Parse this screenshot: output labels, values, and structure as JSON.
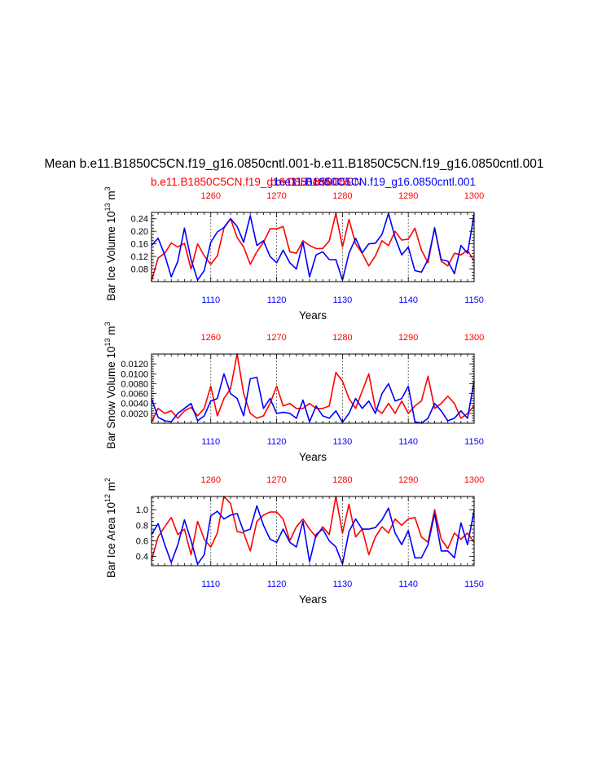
{
  "title": "Mean b.e11.B1850C5CN.f19_g16.0850cntl.001-b.e11.B1850C5CN.f19_g16.0850cntl.001",
  "legend": {
    "red": "b.e11.B1850C5CN.f19_g16.0850cntl.001",
    "overlap": "b.e11.B1850C5CN",
    "blue": "b.e11.B1850C5CN.f19_g16.0850cntl.001"
  },
  "colors": {
    "case1": "#ff0000",
    "case2": "#0000ff"
  },
  "chart_data": [
    {
      "type": "line",
      "ylabel": "Bar Ice Volume 10",
      "ylabel_exp": "13",
      "ylabel_unit": "m",
      "ylabel_unit_exp": "3",
      "xlabel": "Years",
      "ylim": [
        0.04,
        0.26
      ],
      "yticks": [
        0.08,
        0.12,
        0.16,
        0.2,
        0.24
      ],
      "yticklabels": [
        "0.08",
        "0.12",
        "0.16",
        "0.20",
        "0.24"
      ],
      "ystep": 0.01,
      "bottom_axis": {
        "range": [
          1101,
          1150
        ],
        "ticks": [
          1110,
          1120,
          1130,
          1140,
          1150
        ],
        "labels": [
          "1110",
          "1120",
          "1130",
          "1140",
          "1150"
        ]
      },
      "top_axis": {
        "range": [
          1251,
          1300
        ],
        "ticks": [
          1260,
          1270,
          1280,
          1290,
          1300
        ],
        "labels": [
          "1260",
          "1270",
          "1280",
          "1290",
          "1300"
        ]
      },
      "series": [
        {
          "name": "b.e11.B1850C5CN.f19_g16.0850cntl.001 (red, top axis)",
          "color": "#ff0000",
          "values": [
            0.042,
            0.115,
            0.13,
            0.163,
            0.15,
            0.162,
            0.08,
            0.16,
            0.122,
            0.095,
            0.122,
            0.21,
            0.24,
            0.18,
            0.15,
            0.095,
            0.135,
            0.165,
            0.208,
            0.208,
            0.215,
            0.135,
            0.13,
            0.17,
            0.155,
            0.145,
            0.145,
            0.17,
            0.257,
            0.15,
            0.238,
            0.16,
            0.13,
            0.09,
            0.122,
            0.17,
            0.155,
            0.2,
            0.172,
            0.175,
            0.21,
            0.14,
            0.1,
            0.212,
            0.105,
            0.09,
            0.13,
            0.125,
            0.14,
            0.105
          ]
        },
        {
          "name": "b.e11.B1850C5CN.f19_g16.0850cntl.001 (blue, bottom axis)",
          "color": "#0000ff",
          "values": [
            0.155,
            0.178,
            0.125,
            0.055,
            0.105,
            0.21,
            0.11,
            0.045,
            0.075,
            0.165,
            0.198,
            0.212,
            0.24,
            0.215,
            0.165,
            0.25,
            0.155,
            0.17,
            0.12,
            0.1,
            0.14,
            0.1,
            0.08,
            0.165,
            0.055,
            0.125,
            0.135,
            0.11,
            0.11,
            0.045,
            0.13,
            0.178,
            0.132,
            0.16,
            0.162,
            0.19,
            0.257,
            0.18,
            0.125,
            0.15,
            0.075,
            0.07,
            0.11,
            0.21,
            0.11,
            0.105,
            0.065,
            0.155,
            0.13,
            0.255
          ]
        }
      ]
    },
    {
      "type": "line",
      "ylabel": "Bar Snow Volume 10",
      "ylabel_exp": "13",
      "ylabel_unit": "m",
      "ylabel_unit_exp": "3",
      "xlabel": "Years",
      "ylim": [
        0.0,
        0.014
      ],
      "yticks": [
        0.002,
        0.004,
        0.006,
        0.008,
        0.01,
        0.012
      ],
      "yticklabels": [
        "0.0020",
        "0.0040",
        "0.0060",
        "0.0080",
        "0.0100",
        "0.0120"
      ],
      "ystep": 0.0005,
      "bottom_axis": {
        "range": [
          1101,
          1150
        ],
        "ticks": [
          1110,
          1120,
          1130,
          1140,
          1150
        ],
        "labels": [
          "1110",
          "1120",
          "1130",
          "1140",
          "1150"
        ]
      },
      "top_axis": {
        "range": [
          1251,
          1300
        ],
        "ticks": [
          1260,
          1270,
          1280,
          1290,
          1300
        ],
        "labels": [
          "1260",
          "1270",
          "1280",
          "1290",
          "1300"
        ]
      },
      "series": [
        {
          "name": "b.e11.B1850C5CN.f19_g16.0850cntl.001 (red, top axis)",
          "color": "#ff0000",
          "values": [
            0.0002,
            0.003,
            0.002,
            0.0025,
            0.001,
            0.0025,
            0.0032,
            0.0015,
            0.003,
            0.0075,
            0.0015,
            0.005,
            0.007,
            0.014,
            0.006,
            0.002,
            0.001,
            0.0015,
            0.004,
            0.0075,
            0.0035,
            0.004,
            0.003,
            0.003,
            0.004,
            0.003,
            0.003,
            0.0035,
            0.0103,
            0.0085,
            0.005,
            0.003,
            0.0065,
            0.01,
            0.003,
            0.002,
            0.004,
            0.002,
            0.0045,
            0.002,
            0.0035,
            0.0045,
            0.0095,
            0.003,
            0.004,
            0.0055,
            0.004,
            0.001,
            0.002,
            0.0035
          ]
        },
        {
          "name": "b.e11.B1850C5CN.f19_g16.0850cntl.001 (blue, bottom axis)",
          "color": "#0000ff",
          "values": [
            0.005,
            0.0012,
            0.0005,
            0.0003,
            0.002,
            0.003,
            0.004,
            0.0005,
            0.0015,
            0.0045,
            0.005,
            0.01,
            0.006,
            0.005,
            0.0015,
            0.009,
            0.0093,
            0.003,
            0.005,
            0.002,
            0.0022,
            0.002,
            0.001,
            0.0047,
            0.0003,
            0.0035,
            0.0015,
            0.001,
            0.0025,
            0.0002,
            0.002,
            0.005,
            0.003,
            0.0045,
            0.002,
            0.006,
            0.008,
            0.0045,
            0.005,
            0.0075,
            0.0003,
            0.0,
            0.001,
            0.004,
            0.0025,
            0.0005,
            0.001,
            0.0025,
            0.001,
            0.0085
          ]
        }
      ]
    },
    {
      "type": "line",
      "ylabel": "Bar Ice Area 10",
      "ylabel_exp": "12",
      "ylabel_unit": "m",
      "ylabel_unit_exp": "2",
      "xlabel": "Years",
      "ylim": [
        0.28,
        1.17
      ],
      "yticks": [
        0.4,
        0.6,
        0.8,
        1.0
      ],
      "yticklabels": [
        "0.4",
        "0.6",
        "0.8",
        "1.0"
      ],
      "ystep": 0.05,
      "bottom_axis": {
        "range": [
          1101,
          1150
        ],
        "ticks": [
          1110,
          1120,
          1130,
          1140,
          1150
        ],
        "labels": [
          "1110",
          "1120",
          "1130",
          "1140",
          "1150"
        ]
      },
      "top_axis": {
        "range": [
          1251,
          1300
        ],
        "ticks": [
          1260,
          1270,
          1280,
          1290,
          1300
        ],
        "labels": [
          "1260",
          "1270",
          "1280",
          "1290",
          "1300"
        ]
      },
      "series": [
        {
          "name": "b.e11.B1850C5CN.f19_g16.0850cntl.001 (red, top axis)",
          "color": "#ff0000",
          "values": [
            0.35,
            0.65,
            0.78,
            0.9,
            0.68,
            0.75,
            0.42,
            0.85,
            0.62,
            0.52,
            0.7,
            1.17,
            1.08,
            0.72,
            0.7,
            0.47,
            0.85,
            0.93,
            0.97,
            0.97,
            0.88,
            0.6,
            0.78,
            0.88,
            0.75,
            0.65,
            0.78,
            0.68,
            1.17,
            0.7,
            1.07,
            0.65,
            0.75,
            0.42,
            0.65,
            0.78,
            0.7,
            0.88,
            0.8,
            0.88,
            0.9,
            0.65,
            0.58,
            1.0,
            0.62,
            0.5,
            0.7,
            0.62,
            0.7,
            0.58
          ]
        },
        {
          "name": "b.e11.B1850C5CN.f19_g16.0850cntl.001 (blue, bottom axis)",
          "color": "#0000ff",
          "values": [
            0.68,
            0.82,
            0.55,
            0.32,
            0.55,
            0.87,
            0.6,
            0.3,
            0.42,
            0.92,
            0.98,
            0.88,
            0.93,
            0.95,
            0.72,
            0.75,
            1.05,
            0.8,
            0.62,
            0.58,
            0.75,
            0.58,
            0.52,
            0.85,
            0.33,
            0.68,
            0.75,
            0.6,
            0.52,
            0.3,
            0.72,
            0.88,
            0.75,
            0.75,
            0.77,
            0.87,
            1.02,
            0.7,
            0.55,
            0.73,
            0.38,
            0.38,
            0.55,
            0.95,
            0.47,
            0.47,
            0.38,
            0.83,
            0.55,
            0.99
          ]
        }
      ]
    }
  ]
}
